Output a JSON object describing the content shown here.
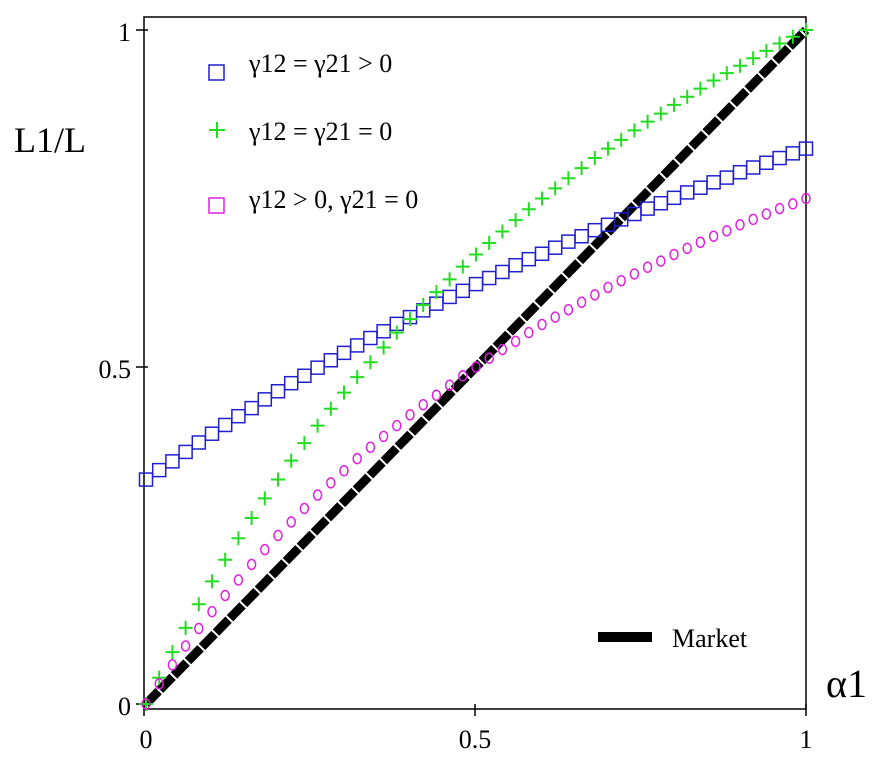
{
  "chart_data": {
    "type": "scatter",
    "title": "",
    "xlabel": "α1",
    "ylabel": "L1/L",
    "xlim": [
      0,
      1
    ],
    "ylim": [
      0,
      1
    ],
    "grid": false,
    "x_ticks": [
      "0",
      "0.5",
      "1"
    ],
    "y_ticks": [
      "0",
      "0.5",
      "1"
    ],
    "legend_placement": "top-left",
    "series": [
      {
        "name": "γ12 = γ21 > 0",
        "marker": "square",
        "color": "#1f1fd0",
        "x": [
          0.0,
          0.02,
          0.04,
          0.06,
          0.08,
          0.1,
          0.12,
          0.14,
          0.16,
          0.18,
          0.2,
          0.22,
          0.24,
          0.26,
          0.28,
          0.3,
          0.32,
          0.34,
          0.36,
          0.38,
          0.4,
          0.42,
          0.44,
          0.46,
          0.48,
          0.5,
          0.52,
          0.54,
          0.56,
          0.58,
          0.6,
          0.62,
          0.64,
          0.66,
          0.68,
          0.7,
          0.72,
          0.74,
          0.76,
          0.78,
          0.8,
          0.82,
          0.84,
          0.86,
          0.88,
          0.9,
          0.92,
          0.94,
          0.96,
          0.98,
          1.0
        ],
        "y": [
          0.333,
          0.347,
          0.36,
          0.374,
          0.388,
          0.401,
          0.414,
          0.427,
          0.439,
          0.452,
          0.464,
          0.476,
          0.487,
          0.499,
          0.51,
          0.521,
          0.532,
          0.543,
          0.553,
          0.564,
          0.574,
          0.584,
          0.594,
          0.604,
          0.613,
          0.623,
          0.632,
          0.641,
          0.651,
          0.66,
          0.668,
          0.677,
          0.686,
          0.694,
          0.703,
          0.711,
          0.719,
          0.727,
          0.735,
          0.743,
          0.751,
          0.759,
          0.766,
          0.774,
          0.781,
          0.789,
          0.796,
          0.803,
          0.81,
          0.817,
          0.824
        ]
      },
      {
        "name": "γ12 = γ21 = 0",
        "marker": "plus",
        "color": "#22dd22",
        "x": [
          0.0,
          0.02,
          0.04,
          0.06,
          0.08,
          0.1,
          0.12,
          0.14,
          0.16,
          0.18,
          0.2,
          0.22,
          0.24,
          0.26,
          0.28,
          0.3,
          0.32,
          0.34,
          0.36,
          0.38,
          0.4,
          0.42,
          0.44,
          0.46,
          0.48,
          0.5,
          0.52,
          0.54,
          0.56,
          0.58,
          0.6,
          0.62,
          0.64,
          0.66,
          0.68,
          0.7,
          0.72,
          0.74,
          0.76,
          0.78,
          0.8,
          0.82,
          0.84,
          0.86,
          0.88,
          0.9,
          0.92,
          0.94,
          0.96,
          0.98,
          1.0
        ],
        "y": [
          0.0,
          0.039,
          0.077,
          0.113,
          0.148,
          0.182,
          0.214,
          0.246,
          0.276,
          0.305,
          0.333,
          0.361,
          0.387,
          0.413,
          0.438,
          0.462,
          0.485,
          0.507,
          0.529,
          0.551,
          0.571,
          0.592,
          0.611,
          0.63,
          0.649,
          0.667,
          0.684,
          0.701,
          0.718,
          0.734,
          0.75,
          0.765,
          0.78,
          0.795,
          0.81,
          0.824,
          0.837,
          0.851,
          0.864,
          0.876,
          0.889,
          0.901,
          0.913,
          0.925,
          0.936,
          0.947,
          0.958,
          0.969,
          0.98,
          0.99,
          1.0
        ]
      },
      {
        "name": "γ12 > 0, γ21 = 0",
        "marker": "square",
        "color": "#e020e0",
        "x": [],
        "y": []
      },
      {
        "name": "",
        "marker": "circle",
        "color": "#e020e0",
        "x": [
          0.0,
          0.02,
          0.04,
          0.06,
          0.08,
          0.1,
          0.12,
          0.14,
          0.16,
          0.18,
          0.2,
          0.22,
          0.24,
          0.26,
          0.28,
          0.3,
          0.32,
          0.34,
          0.36,
          0.38,
          0.4,
          0.42,
          0.44,
          0.46,
          0.48,
          0.5,
          0.52,
          0.54,
          0.56,
          0.58,
          0.6,
          0.62,
          0.64,
          0.66,
          0.68,
          0.7,
          0.72,
          0.74,
          0.76,
          0.78,
          0.8,
          0.82,
          0.84,
          0.86,
          0.88,
          0.9,
          0.92,
          0.94,
          0.96,
          0.98,
          1.0
        ],
        "y": [
          0.0,
          0.03,
          0.058,
          0.086,
          0.112,
          0.137,
          0.161,
          0.184,
          0.207,
          0.229,
          0.25,
          0.27,
          0.29,
          0.31,
          0.328,
          0.346,
          0.364,
          0.381,
          0.397,
          0.413,
          0.429,
          0.444,
          0.458,
          0.473,
          0.487,
          0.5,
          0.513,
          0.526,
          0.538,
          0.551,
          0.563,
          0.574,
          0.585,
          0.596,
          0.607,
          0.618,
          0.628,
          0.638,
          0.648,
          0.657,
          0.667,
          0.676,
          0.685,
          0.694,
          0.702,
          0.711,
          0.719,
          0.727,
          0.735,
          0.742,
          0.75
        ]
      },
      {
        "name": "Market",
        "marker": "line",
        "color": "#000000",
        "x": [
          0,
          1
        ],
        "y": [
          0,
          1
        ]
      }
    ]
  }
}
